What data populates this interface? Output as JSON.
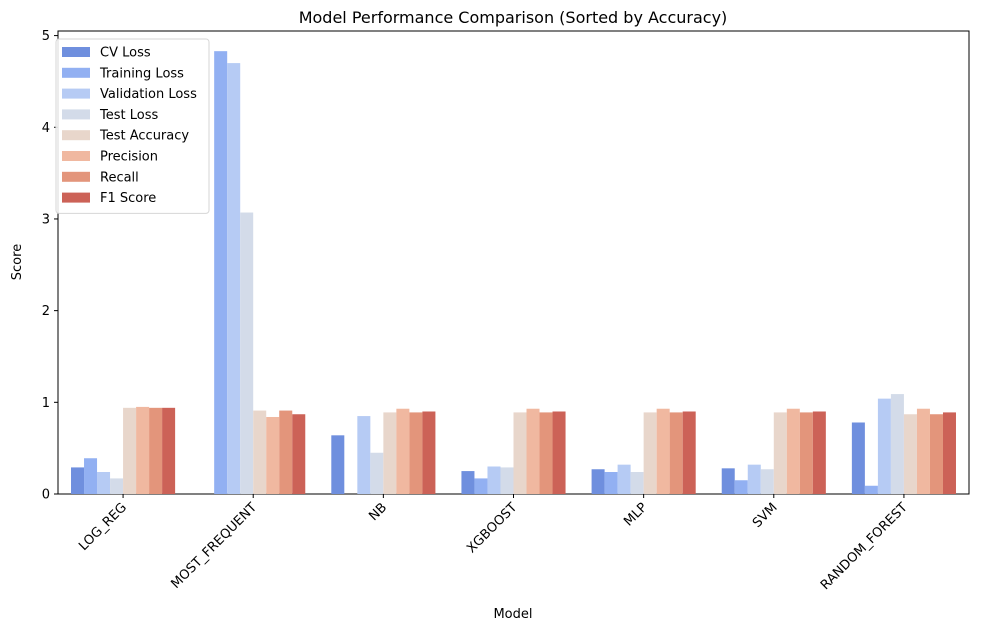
{
  "chart_data": {
    "type": "bar",
    "title": "Model Performance Comparison (Sorted by Accuracy)",
    "xlabel": "Model",
    "ylabel": "Score",
    "ylim": [
      0,
      5.05
    ],
    "yticks": [
      0,
      1,
      2,
      3,
      4,
      5
    ],
    "grid": false,
    "legend_position": "top-left",
    "categories": [
      "LOG_REG",
      "MOST_FREQUENT",
      "NB",
      "XGBOOST",
      "MLP",
      "SVM",
      "RANDOM_FOREST"
    ],
    "series": [
      {
        "name": "CV Loss",
        "color": "#6f8fde",
        "values": [
          0.29,
          null,
          0.64,
          0.25,
          0.27,
          0.28,
          0.78
        ]
      },
      {
        "name": "Training Loss",
        "color": "#92b0f2",
        "values": [
          0.39,
          4.83,
          null,
          0.17,
          0.24,
          0.15,
          0.09
        ]
      },
      {
        "name": "Validation Loss",
        "color": "#b6cbf4",
        "values": [
          0.24,
          4.7,
          0.85,
          0.3,
          0.32,
          0.32,
          1.04
        ]
      },
      {
        "name": "Test Loss",
        "color": "#d3dbe9",
        "values": [
          0.17,
          3.07,
          0.45,
          0.29,
          0.24,
          0.27,
          1.09
        ]
      },
      {
        "name": "Test Accuracy",
        "color": "#e8d6cb",
        "values": [
          0.94,
          0.91,
          0.89,
          0.89,
          0.89,
          0.89,
          0.87
        ]
      },
      {
        "name": "Precision",
        "color": "#f0b8a0",
        "values": [
          0.95,
          0.84,
          0.93,
          0.93,
          0.93,
          0.93,
          0.93
        ]
      },
      {
        "name": "Recall",
        "color": "#e3957b",
        "values": [
          0.94,
          0.91,
          0.89,
          0.89,
          0.89,
          0.89,
          0.87
        ]
      },
      {
        "name": "F1 Score",
        "color": "#cc6257",
        "values": [
          0.94,
          0.87,
          0.9,
          0.9,
          0.9,
          0.9,
          0.89
        ]
      }
    ]
  }
}
